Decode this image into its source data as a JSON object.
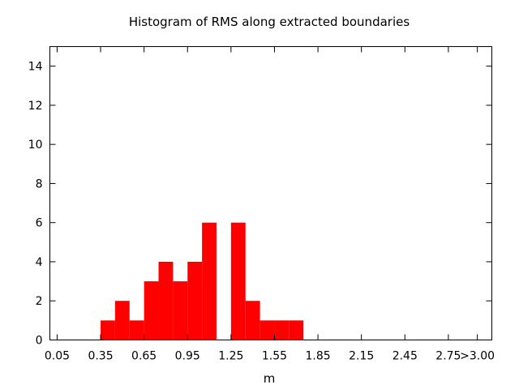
{
  "chart_data": {
    "type": "bar",
    "title": "Histogram of RMS along extracted boundaries",
    "xlabel": "m",
    "ylabel": "",
    "xlim": [
      0.0,
      3.05
    ],
    "ylim": [
      0,
      15
    ],
    "bin_width": 0.1,
    "x_ticks": [
      {
        "value": 0.05,
        "label": "0.05"
      },
      {
        "value": 0.35,
        "label": "0.35"
      },
      {
        "value": 0.65,
        "label": "0.65"
      },
      {
        "value": 0.95,
        "label": "0.95"
      },
      {
        "value": 1.25,
        "label": "1.25"
      },
      {
        "value": 1.55,
        "label": "1.55"
      },
      {
        "value": 1.85,
        "label": "1.85"
      },
      {
        "value": 2.15,
        "label": "2.15"
      },
      {
        "value": 2.45,
        "label": "2.45"
      },
      {
        "value": 2.75,
        "label": "2.75"
      },
      {
        "value": 2.95,
        "label": ">3.00"
      }
    ],
    "y_ticks": [
      0,
      2,
      4,
      6,
      8,
      10,
      12,
      14
    ],
    "categories": [
      "0.40",
      "0.50",
      "0.60",
      "0.70",
      "0.80",
      "0.90",
      "1.00",
      "1.10",
      "1.20",
      "1.30",
      "1.40",
      "1.50",
      "1.60",
      "1.70"
    ],
    "values": [
      1,
      2,
      1,
      3,
      4,
      3,
      4,
      6,
      0,
      6,
      2,
      1,
      1,
      1
    ],
    "bar_color": "#ff0000",
    "grid": false,
    "legend": "none"
  }
}
